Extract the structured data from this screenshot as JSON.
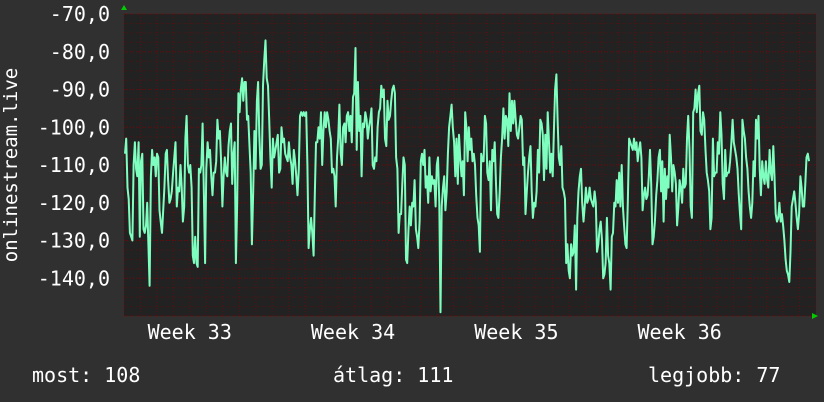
{
  "chart_data": {
    "type": "line",
    "ylabel": "onlinestream.live",
    "ylim": [
      -150,
      -70
    ],
    "yticks": [
      -70,
      -80,
      -90,
      -100,
      -110,
      -120,
      -130,
      -140
    ],
    "ytick_labels": [
      "-70,0",
      "-80,0",
      "-90,0",
      "-100,0",
      "-110,0",
      "-120,0",
      "-130,0",
      "-140,0"
    ],
    "x_labels": [
      "Week 33",
      "Week 34",
      "Week 35",
      "Week 36"
    ],
    "x_label_positions": [
      0.095,
      0.331,
      0.567,
      0.803
    ],
    "grid": true,
    "colors": {
      "background": "#303030",
      "plot": "#222222",
      "grid": "#8b0000",
      "line": "#7fffbf",
      "arrow": "#00cc00",
      "text": "#ffffff"
    },
    "series": [
      {
        "values": [
          -107,
          -103,
          -116,
          -119,
          -128,
          -129,
          -130,
          -110,
          -104,
          -111,
          -113,
          -104,
          -129,
          -109,
          -107,
          -127,
          -128,
          -126,
          -120,
          -131,
          -142,
          -113,
          -106,
          -110,
          -108,
          -113,
          -107,
          -108,
          -122,
          -125,
          -128,
          -122,
          -116,
          -107,
          -106,
          -114,
          -120,
          -119,
          -117,
          -112,
          -108,
          -104,
          -121,
          -116,
          -117,
          -110,
          -116,
          -125,
          -121,
          -103,
          -97,
          -110,
          -112,
          -110,
          -116,
          -134,
          -136,
          -129,
          -136,
          -137,
          -111,
          -112,
          -110,
          -99,
          -118,
          -136,
          -111,
          -104,
          -108,
          -106,
          -113,
          -118,
          -112,
          -112,
          -109,
          -98,
          -103,
          -101,
          -109,
          -121,
          -113,
          -108,
          -112,
          -113,
          -105,
          -101,
          -99,
          -115,
          -107,
          -104,
          -136,
          -120,
          -91,
          -96,
          -90,
          -87,
          -93,
          -88,
          -88,
          -98,
          -97,
          -105,
          -112,
          -131,
          -117,
          -101,
          -111,
          -93,
          -88,
          -102,
          -111,
          -110,
          -89,
          -82,
          -77,
          -87,
          -89,
          -98,
          -108,
          -116,
          -103,
          -108,
          -106,
          -104,
          -102,
          -112,
          -111,
          -100,
          -104,
          -103,
          -107,
          -108,
          -109,
          -104,
          -108,
          -110,
          -115,
          -106,
          -109,
          -113,
          -118,
          -111,
          -97,
          -96,
          -97,
          -96,
          -97,
          -96,
          -110,
          -132,
          -127,
          -124,
          -128,
          -134,
          -118,
          -104,
          -104,
          -100,
          -103,
          -96,
          -110,
          -101,
          -96,
          -100,
          -96,
          -98,
          -101,
          -103,
          -112,
          -111,
          -113,
          -121,
          -108,
          -103,
          -94,
          -107,
          -110,
          -100,
          -99,
          -104,
          -97,
          -96,
          -101,
          -97,
          -104,
          -92,
          -91,
          -79,
          -106,
          -88,
          -101,
          -97,
          -113,
          -99,
          -100,
          -96,
          -98,
          -103,
          -100,
          -98,
          -95,
          -110,
          -111,
          -108,
          -109,
          -100,
          -96,
          -95,
          -89,
          -92,
          -90,
          -103,
          -105,
          -93,
          -98,
          -97,
          -93,
          -90,
          -89,
          -91,
          -108,
          -111,
          -128,
          -123,
          -123,
          -115,
          -108,
          -110,
          -135,
          -136,
          -127,
          -121,
          -126,
          -120,
          -121,
          -114,
          -127,
          -129,
          -132,
          -125,
          -109,
          -107,
          -110,
          -106,
          -116,
          -113,
          -120,
          -108,
          -117,
          -113,
          -115,
          -114,
          -121,
          -110,
          -108,
          -120,
          -149,
          -121,
          -116,
          -113,
          -122,
          -117,
          -107,
          -100,
          -97,
          -94,
          -100,
          -104,
          -113,
          -103,
          -115,
          -102,
          -108,
          -113,
          -109,
          -118,
          -96,
          -100,
          -109,
          -100,
          -106,
          -103,
          -109,
          -107,
          -110,
          -118,
          -124,
          -126,
          -133,
          -107,
          -109,
          -109,
          -97,
          -99,
          -112,
          -114,
          -109,
          -122,
          -106,
          -109,
          -104,
          -115,
          -123,
          -124,
          -117,
          -108,
          -103,
          -95,
          -103,
          -97,
          -98,
          -105,
          -91,
          -101,
          -93,
          -99,
          -93,
          -98,
          -102,
          -103,
          -100,
          -97,
          -98,
          -110,
          -108,
          -123,
          -117,
          -112,
          -108,
          -105,
          -117,
          -124,
          -120,
          -121,
          -117,
          -106,
          -112,
          -98,
          -99,
          -102,
          -114,
          -102,
          -111,
          -96,
          -104,
          -112,
          -107,
          -113,
          -101,
          -90,
          -86,
          -98,
          -108,
          -110,
          -105,
          -116,
          -117,
          -119,
          -136,
          -131,
          -138,
          -140,
          -131,
          -134,
          -133,
          -126,
          -143,
          -124,
          -117,
          -113,
          -111,
          -120,
          -125,
          -121,
          -116,
          -120,
          -119,
          -116,
          -119,
          -120,
          -121,
          -117,
          -120,
          -133,
          -131,
          -127,
          -125,
          -130,
          -140,
          -139,
          -136,
          -124,
          -134,
          -136,
          -143,
          -129,
          -128,
          -120,
          -121,
          -114,
          -120,
          -112,
          -121,
          -110,
          -121,
          -126,
          -131,
          -132,
          -120,
          -103,
          -104,
          -105,
          -106,
          -103,
          -106,
          -104,
          -109,
          -106,
          -104,
          -108,
          -122,
          -118,
          -116,
          -119,
          -118,
          -113,
          -106,
          -115,
          -131,
          -129,
          -125,
          -118,
          -114,
          -108,
          -106,
          -117,
          -109,
          -125,
          -111,
          -119,
          -113,
          -116,
          -102,
          -108,
          -117,
          -110,
          -112,
          -115,
          -126,
          -121,
          -114,
          -116,
          -120,
          -111,
          -116,
          -115,
          -103,
          -97,
          -106,
          -121,
          -124,
          -96,
          -95,
          -90,
          -96,
          -91,
          -89,
          -101,
          -102,
          -96,
          -98,
          -106,
          -112,
          -114,
          -117,
          -127,
          -124,
          -103,
          -113,
          -112,
          -112,
          -104,
          -107,
          -96,
          -102,
          -115,
          -119,
          -106,
          -113,
          -112,
          -112,
          -109,
          -104,
          -98,
          -104,
          -106,
          -108,
          -111,
          -118,
          -123,
          -127,
          -98,
          -101,
          -103,
          -108,
          -111,
          -117,
          -121,
          -124,
          -120,
          -109,
          -113,
          -98,
          -103,
          -97,
          -111,
          -118,
          -109,
          -113,
          -115,
          -109,
          -114,
          -116,
          -106,
          -112,
          -114,
          -105,
          -113,
          -123,
          -125,
          -124,
          -120,
          -125,
          -123,
          -126,
          -130,
          -135,
          -138,
          -139,
          -141,
          -133,
          -121,
          -119,
          -117,
          -120,
          -124,
          -127,
          -123,
          -113,
          -116,
          -121,
          -121,
          -115,
          -108,
          -107,
          -109
        ]
      }
    ]
  },
  "footer": {
    "now": "most: 108",
    "avg": "átlag: 111",
    "best": "legjobb: 77"
  }
}
